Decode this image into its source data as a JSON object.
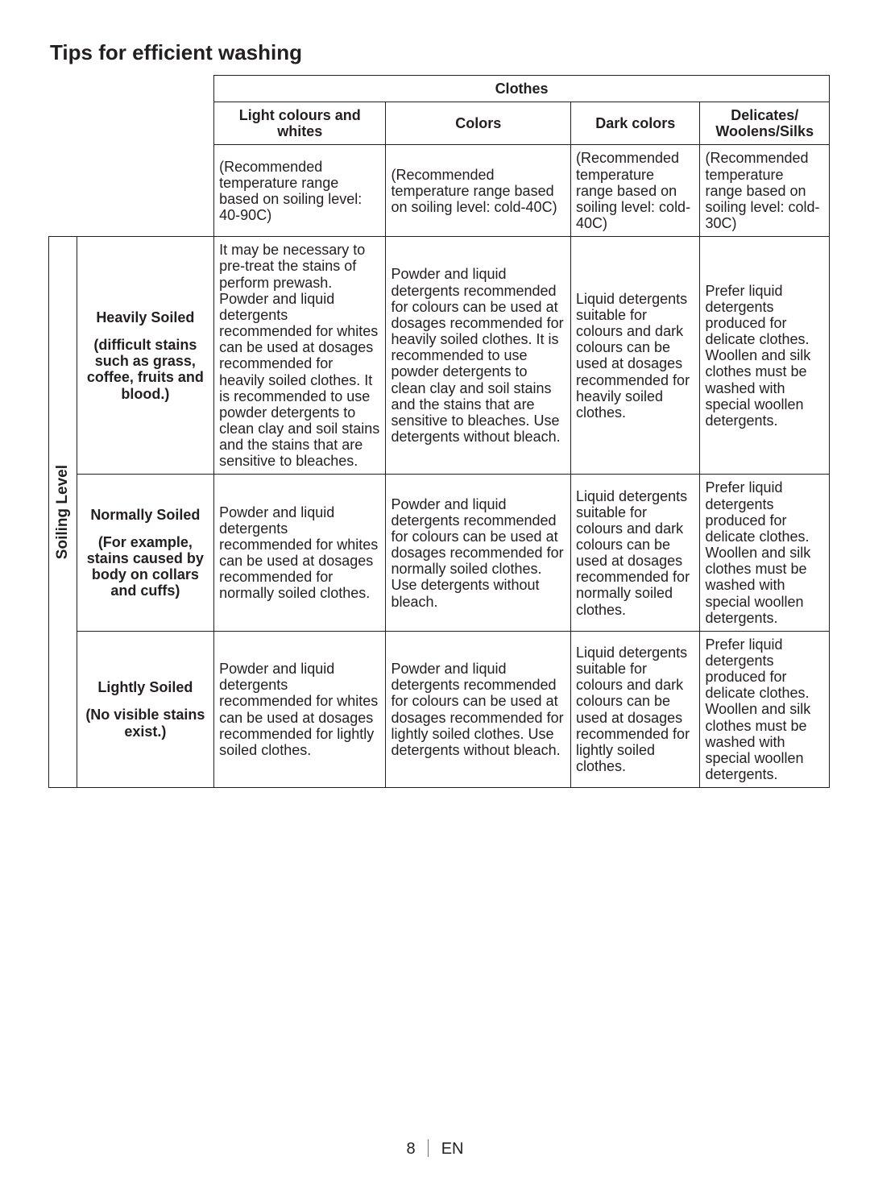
{
  "page": {
    "title": "Tips for efficient washing",
    "footer_page": "8",
    "footer_lang": "EN"
  },
  "table": {
    "top_header": "Clothes",
    "side_header": "Soiling Level",
    "columns": [
      "Light colours and whites",
      "Colors",
      "Dark colors",
      "Delicates/ Woolens/Silks"
    ],
    "temp_row": [
      "(Recommended temperature range based on soiling level: 40-90C)",
      "(Recommended temperature range based on soiling level: cold-40C)",
      "(Recommended temperature range based on soiling level: cold-40C)",
      "(Recommended temperature range based on soiling level: cold-30C)"
    ],
    "rows": [
      {
        "label_main": "Heavily Soiled",
        "label_sub": "(difficult stains such as grass, coffee, fruits and blood.)",
        "cells": [
          "It may be necessary to pre-treat the stains of perform prewash. Powder and liquid detergents recommended for whites can be used at dosages recommended for heavily soiled clothes. It is recommended to use powder detergents to clean clay and soil stains and the stains that are sensitive to bleaches.",
          "Powder and liquid detergents recommended for colours can be used at dosages recommended for heavily soiled clothes. It is recommended to use powder detergents to clean clay and soil stains and the stains that are sensitive to bleaches. Use detergents without bleach.",
          "Liquid detergents suitable for colours and dark colours can be used at dosages recommended for heavily soiled clothes.",
          "Prefer liquid detergents produced for delicate clothes. Woollen and silk clothes must be washed with special woollen detergents."
        ]
      },
      {
        "label_main": "Normally Soiled",
        "label_sub": "(For example, stains caused by body on collars and cuffs)",
        "cells": [
          "Powder and liquid detergents recommended for whites can be used at dosages recommended for normally soiled clothes.",
          "Powder and liquid detergents recommended for colours can be used at dosages recommended for normally soiled clothes. Use detergents without bleach.",
          "Liquid detergents suitable for colours and dark colours can be used at dosages recommended for normally soiled clothes.",
          "Prefer liquid detergents produced for delicate clothes. Woollen and silk clothes must be washed with special woollen detergents."
        ]
      },
      {
        "label_main": "Lightly Soiled",
        "label_sub": "(No visible stains exist.)",
        "cells": [
          "Powder and liquid detergents recommended for whites can be used at dosages recommended for lightly soiled clothes.",
          "Powder and liquid detergents recommended for colours can be used at dosages recommended for lightly soiled clothes. Use detergents without bleach.",
          "Liquid detergents suitable for colours and dark colours can be used at dosages recommended for lightly soiled clothes.",
          "Prefer liquid detergents produced for delicate clothes. Woollen and silk clothes must be washed with special woollen detergents."
        ]
      }
    ]
  }
}
